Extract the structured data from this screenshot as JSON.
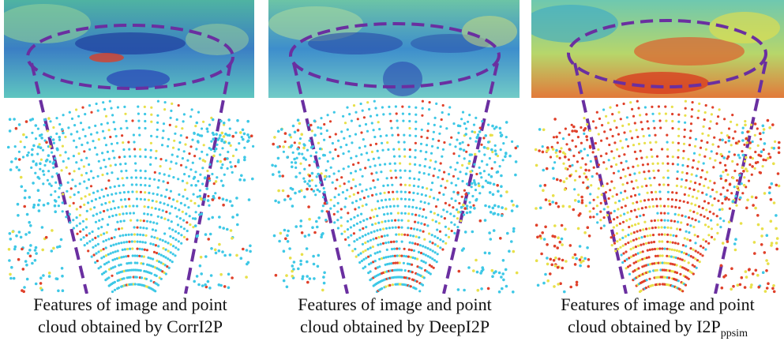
{
  "panels": [
    {
      "id": "corri2p",
      "caption_line1": "Features of image and point",
      "caption_line2_prefix": "cloud obtained by ",
      "caption_method": "CorrI2P",
      "caption_sub": "",
      "heat": "low"
    },
    {
      "id": "deepi2p",
      "caption_line1": "Features of image and point",
      "caption_line2_prefix": "cloud obtained by ",
      "caption_method": "DeepI2P",
      "caption_sub": "",
      "heat": "medium"
    },
    {
      "id": "i2p-ppsim",
      "caption_line1": "Features of image and point",
      "caption_line2_prefix": "cloud  obtained by ",
      "caption_method": "I2P",
      "caption_sub": "ppsim",
      "heat": "high"
    }
  ],
  "colors": {
    "dashed_ellipse": "#6a2fa0",
    "cold": "#3ec8e6",
    "warm": "#e8e04a",
    "hot": "#e0402a"
  }
}
